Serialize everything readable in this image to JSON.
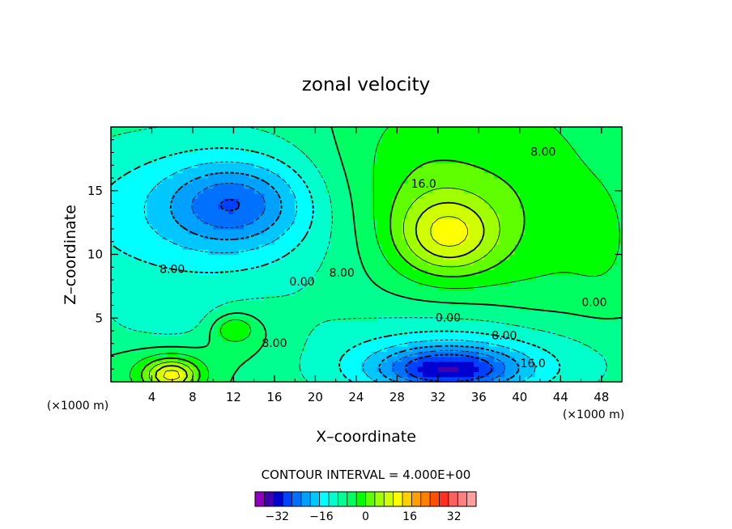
{
  "chart_data": {
    "type": "heatmap",
    "title": "zonal velocity",
    "xlabel": "X–coordinate",
    "ylabel": "Z–coordinate",
    "x_unit_left": "(×1000 m)",
    "x_unit_right": "(×1000 m)",
    "xlim": [
      0,
      50
    ],
    "ylim": [
      0,
      20
    ],
    "xticks": [
      4,
      8,
      12,
      16,
      20,
      24,
      28,
      32,
      36,
      40,
      44,
      48
    ],
    "yticks": [
      5,
      10,
      15
    ],
    "contour_interval_text": "CONTOUR INTERVAL = 4.000E+00",
    "contour_interval": 4,
    "contour_labels": [
      {
        "text": "16.0",
        "x": 30.6,
        "y": 15.5
      },
      {
        "text": "8.00",
        "x": 42.3,
        "y": 18.0
      },
      {
        "text": "8.00",
        "x": 22.6,
        "y": 8.5
      },
      {
        "text": "0.00",
        "x": 18.7,
        "y": 7.8
      },
      {
        "text": "0.00",
        "x": 47.3,
        "y": 6.2
      },
      {
        "text": "8.00",
        "x": 6.0,
        "y": 8.8
      },
      {
        "text": "0.00",
        "x": 33.0,
        "y": 5.0
      },
      {
        "text": "8.00",
        "x": 38.5,
        "y": 3.6
      },
      {
        "text": "8.00",
        "x": 16.0,
        "y": 3.0
      },
      {
        "text": "16.0",
        "x": 41.3,
        "y": 1.4
      }
    ],
    "features": [
      {
        "kind": "max",
        "x": 33,
        "y": 11.5,
        "value": 22
      },
      {
        "kind": "min",
        "x": 12,
        "y": 14,
        "value": -14
      },
      {
        "kind": "min",
        "x": 33,
        "y": 1.0,
        "value": -22
      },
      {
        "kind": "max",
        "x": 6,
        "y": 0.5,
        "value": 20
      },
      {
        "kind": "max",
        "x": 12,
        "y": 4.2,
        "value": 12
      }
    ],
    "colorbar": {
      "tick_labels": [
        "−32",
        "−16",
        "0",
        "16",
        "32"
      ],
      "tick_values": [
        -32,
        -16,
        0,
        16,
        32
      ],
      "min": -40,
      "max": 40,
      "step": 4,
      "colors": [
        "#8f00bf",
        "#4000b0",
        "#0000d0",
        "#0040ff",
        "#0070ff",
        "#00a0ff",
        "#00c8ff",
        "#00ffff",
        "#00ffcc",
        "#00ff90",
        "#00ff60",
        "#00ff00",
        "#60ff00",
        "#a0ff00",
        "#d0ff00",
        "#ffff00",
        "#ffd000",
        "#ffa000",
        "#ff8000",
        "#ff5000",
        "#ff3020",
        "#ff6060",
        "#ff8080",
        "#ffa0a0"
      ]
    }
  }
}
